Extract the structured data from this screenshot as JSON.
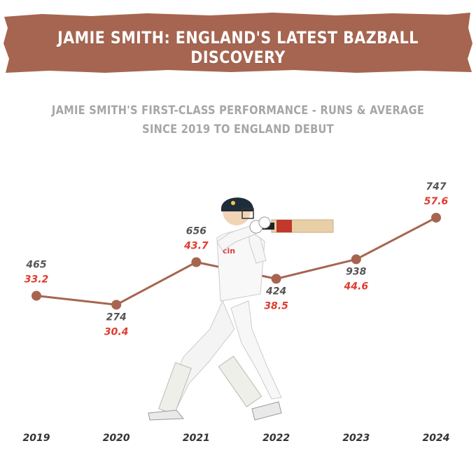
{
  "header": {
    "title": "JAMIE SMITH: ENGLAND'S LATEST BAZBALL DISCOVERY",
    "banner_color": "#a66550"
  },
  "chart_data": {
    "type": "line",
    "title_line1": "JAMIE SMITH'S FIRST-CLASS PERFORMANCE - RUNS & AVERAGE",
    "title_line2": "SINCE 2019 TO ENGLAND DEBUT",
    "xlabel": "",
    "ylabel": "",
    "categories": [
      "2019",
      "2020",
      "2021",
      "2022",
      "2023",
      "2024"
    ],
    "series": [
      {
        "values": [
          465,
          274,
          656,
          424,
          938,
          747
        ]
      },
      {
        "values": [
          33.2,
          30.4,
          43.7,
          38.5,
          44.6,
          57.6
        ]
      }
    ],
    "line_series": 1,
    "ylim": [
      25,
      60
    ],
    "grid": false,
    "colors": {
      "line": "#a66550",
      "runs": "#555555",
      "average": "#e03a2f",
      "title": "#a6a6a6"
    }
  },
  "image": {
    "icon": "cricket-batsman-icon"
  }
}
